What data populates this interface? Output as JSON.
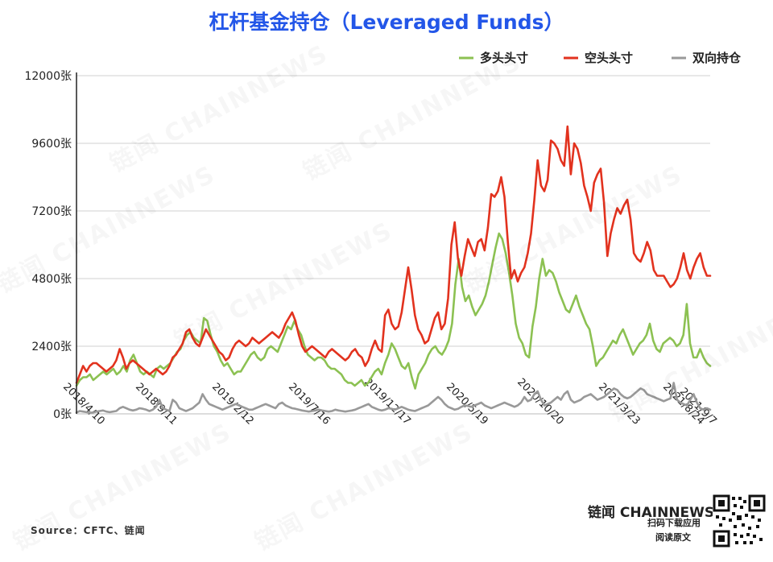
{
  "title": "杠杆基金持仓（Leveraged Funds）",
  "source": "Source：CFTC、链闻",
  "brand": {
    "name": "链闻 CHAINNEWS",
    "line1": "扫码下载应用",
    "line2": "阅读原文"
  },
  "watermark": "链闻 CHAINNEWS",
  "colors": {
    "long": "#8cc152",
    "short": "#e2321e",
    "spread": "#999999",
    "title": "#2356e8"
  },
  "chart_data": {
    "type": "line",
    "title": "杠杆基金持仓（Leveraged Funds）",
    "xlabel": "",
    "ylabel": "",
    "ylim": [
      0,
      12000
    ],
    "grid": true,
    "legend_position": "top-right",
    "yticks": [
      "0张",
      "2400张",
      "4800张",
      "7200张",
      "9600张",
      "12000张"
    ],
    "xticks": [
      "2018/4/10",
      "2018/9/11",
      "2019/2/12",
      "2019/7/16",
      "2019/12/17",
      "2020/5/19",
      "2020/10/20",
      "2021/3/23",
      "2021/8/24",
      "2021/9/7"
    ],
    "series": [
      {
        "name": "多头头寸",
        "color": "#8cc152",
        "values": [
          1000,
          1200,
          1300,
          1300,
          1400,
          1200,
          1300,
          1400,
          1500,
          1400,
          1500,
          1600,
          1400,
          1500,
          1700,
          1500,
          1900,
          2100,
          1800,
          1500,
          1400,
          1500,
          1400,
          1300,
          1600,
          1700,
          1600,
          1700,
          1800,
          2000,
          2200,
          2300,
          2600,
          2800,
          2900,
          2700,
          2600,
          2500,
          3400,
          3300,
          2800,
          2400,
          2200,
          1900,
          1700,
          1800,
          1600,
          1400,
          1500,
          1500,
          1700,
          1900,
          2100,
          2200,
          2000,
          1900,
          2000,
          2300,
          2400,
          2300,
          2200,
          2500,
          2800,
          3100,
          3000,
          3300,
          3000,
          2800,
          2400,
          2100,
          2000,
          1900,
          2000,
          2000,
          1900,
          1700,
          1600,
          1600,
          1500,
          1400,
          1200,
          1100,
          1100,
          1000,
          1100,
          1200,
          1000,
          1100,
          1300,
          1500,
          1600,
          1400,
          1800,
          2100,
          2500,
          2300,
          2000,
          1700,
          1600,
          1800,
          1300,
          900,
          1400,
          1600,
          1800,
          2100,
          2300,
          2400,
          2200,
          2100,
          2300,
          2600,
          3200,
          4600,
          5500,
          4500,
          4000,
          4200,
          3800,
          3500,
          3700,
          3900,
          4200,
          4700,
          5300,
          5900,
          6400,
          6200,
          5700,
          5000,
          4200,
          3200,
          2700,
          2500,
          2100,
          2000,
          3100,
          3800,
          4800,
          5500,
          4900,
          5100,
          5000,
          4700,
          4300,
          4000,
          3700,
          3600,
          3900,
          4200,
          3800,
          3500,
          3200,
          3000,
          2400,
          1700,
          1900,
          2000,
          2200,
          2400,
          2600,
          2500,
          2800,
          3000,
          2700,
          2400,
          2100,
          2300,
          2500,
          2600,
          2800,
          3200,
          2600,
          2300,
          2200,
          2500,
          2600,
          2700,
          2600,
          2400,
          2500,
          2800,
          3900,
          2500,
          2000,
          2000,
          2300,
          2000,
          1800,
          1700
        ]
      },
      {
        "name": "空头头寸",
        "color": "#e2321e",
        "values": [
          1100,
          1400,
          1700,
          1500,
          1700,
          1800,
          1800,
          1700,
          1600,
          1500,
          1600,
          1700,
          1900,
          2300,
          2000,
          1600,
          1800,
          1900,
          1800,
          1700,
          1600,
          1500,
          1400,
          1500,
          1600,
          1500,
          1400,
          1500,
          1700,
          2000,
          2100,
          2300,
          2500,
          2900,
          3000,
          2700,
          2500,
          2400,
          2700,
          3000,
          2800,
          2600,
          2400,
          2200,
          2100,
          1900,
          2000,
          2300,
          2500,
          2600,
          2500,
          2400,
          2500,
          2700,
          2600,
          2500,
          2600,
          2700,
          2800,
          2900,
          2800,
          2700,
          2900,
          3200,
          3400,
          3600,
          3300,
          2800,
          2400,
          2200,
          2300,
          2400,
          2300,
          2200,
          2100,
          2000,
          2200,
          2300,
          2200,
          2100,
          2000,
          1900,
          2000,
          2200,
          2300,
          2100,
          2000,
          1700,
          1900,
          2300,
          2600,
          2300,
          2200,
          3500,
          3700,
          3200,
          3000,
          3100,
          3600,
          4400,
          5200,
          4400,
          3500,
          3000,
          2800,
          2500,
          2600,
          3000,
          3400,
          3600,
          3000,
          3200,
          4100,
          6000,
          6800,
          5500,
          4900,
          5600,
          6200,
          5900,
          5600,
          6100,
          6200,
          5800,
          6600,
          7800,
          7700,
          7900,
          8400,
          7700,
          6100,
          4800,
          5100,
          4700,
          5000,
          5200,
          5700,
          6400,
          7600,
          9000,
          8100,
          7900,
          8300,
          9700,
          9600,
          9400,
          9000,
          8800,
          10200,
          8500,
          9600,
          9400,
          8900,
          8100,
          7700,
          7200,
          8200,
          8500,
          8700,
          7500,
          5600,
          6400,
          6900,
          7300,
          7100,
          7400,
          7600,
          6900,
          5700,
          5500,
          5400,
          5700,
          6100,
          5800,
          5100,
          4900,
          4900,
          4900,
          4700,
          4500,
          4600,
          4800,
          5200,
          5700,
          5100,
          4800,
          5200,
          5500,
          5700,
          5200,
          4900,
          4900
        ]
      },
      {
        "name": "双向持仓",
        "color": "#999999",
        "values": [
          50,
          100,
          80,
          60,
          40,
          50,
          80,
          100,
          120,
          80,
          60,
          80,
          100,
          200,
          250,
          200,
          150,
          120,
          150,
          200,
          180,
          150,
          100,
          150,
          250,
          500,
          200,
          150,
          100,
          500,
          400,
          200,
          150,
          100,
          150,
          200,
          300,
          400,
          700,
          500,
          350,
          300,
          250,
          200,
          150,
          200,
          250,
          300,
          350,
          300,
          250,
          200,
          150,
          150,
          200,
          250,
          300,
          350,
          300,
          250,
          200,
          350,
          400,
          300,
          250,
          200,
          180,
          150,
          120,
          100,
          80,
          100,
          120,
          150,
          120,
          100,
          80,
          100,
          150,
          120,
          100,
          80,
          100,
          120,
          150,
          200,
          250,
          300,
          350,
          250,
          200,
          150,
          120,
          150,
          200,
          180,
          150,
          200,
          250,
          200,
          150,
          120,
          100,
          150,
          200,
          250,
          300,
          400,
          500,
          600,
          500,
          350,
          250,
          200,
          150,
          180,
          250,
          300,
          280,
          250,
          300,
          350,
          400,
          300,
          250,
          200,
          250,
          300,
          350,
          400,
          350,
          300,
          250,
          300,
          400,
          600,
          450,
          500,
          700,
          800,
          500,
          300,
          350,
          400,
          500,
          600,
          500,
          700,
          800,
          500,
          400,
          450,
          500,
          600,
          650,
          700,
          600,
          500,
          550,
          600,
          700,
          800,
          900,
          850,
          700,
          600,
          550,
          600,
          700,
          800,
          900,
          850,
          700,
          650,
          600,
          550,
          500,
          450,
          500,
          550,
          1100,
          500,
          400,
          350,
          300,
          500,
          700,
          400,
          200,
          150,
          200,
          150
        ]
      }
    ]
  }
}
